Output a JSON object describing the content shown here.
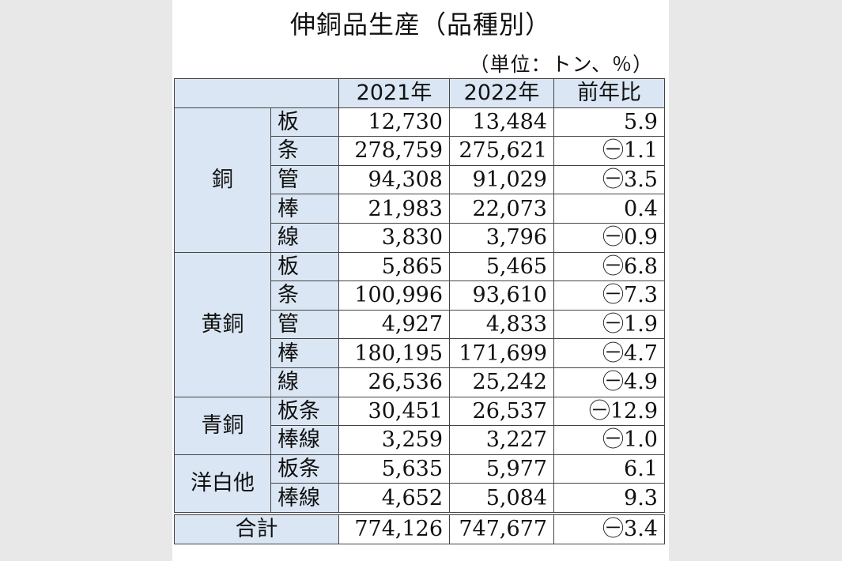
{
  "title": "伸銅品生産（品種別）",
  "unit": "（単位：トン、％）",
  "header": {
    "blank": "",
    "col2021": "2021年",
    "col2022": "2022年",
    "ratio": "前年比"
  },
  "groups": [
    {
      "name": "銅",
      "rows": [
        {
          "item": "板",
          "y2021": "12,730",
          "y2022": "13,484",
          "ratio": "5.9"
        },
        {
          "item": "条",
          "y2021": "278,759",
          "y2022": "275,621",
          "ratio": "㊀1.1"
        },
        {
          "item": "管",
          "y2021": "94,308",
          "y2022": "91,029",
          "ratio": "㊀3.5"
        },
        {
          "item": "棒",
          "y2021": "21,983",
          "y2022": "22,073",
          "ratio": "0.4"
        },
        {
          "item": "線",
          "y2021": "3,830",
          "y2022": "3,796",
          "ratio": "㊀0.9"
        }
      ]
    },
    {
      "name": "黄銅",
      "rows": [
        {
          "item": "板",
          "y2021": "5,865",
          "y2022": "5,465",
          "ratio": "㊀6.8"
        },
        {
          "item": "条",
          "y2021": "100,996",
          "y2022": "93,610",
          "ratio": "㊀7.3"
        },
        {
          "item": "管",
          "y2021": "4,927",
          "y2022": "4,833",
          "ratio": "㊀1.9"
        },
        {
          "item": "棒",
          "y2021": "180,195",
          "y2022": "171,699",
          "ratio": "㊀4.7"
        },
        {
          "item": "線",
          "y2021": "26,536",
          "y2022": "25,242",
          "ratio": "㊀4.9"
        }
      ]
    },
    {
      "name": "青銅",
      "rows": [
        {
          "item": "板条",
          "y2021": "30,451",
          "y2022": "26,537",
          "ratio": "㊀12.9"
        },
        {
          "item": "棒線",
          "y2021": "3,259",
          "y2022": "3,227",
          "ratio": "㊀1.0"
        }
      ]
    },
    {
      "name": "洋白他",
      "rows": [
        {
          "item": "板条",
          "y2021": "5,635",
          "y2022": "5,977",
          "ratio": "6.1"
        },
        {
          "item": "棒線",
          "y2021": "4,652",
          "y2022": "5,084",
          "ratio": "9.3"
        }
      ]
    }
  ],
  "total": {
    "label": "合計",
    "y2021": "774,126",
    "y2022": "747,677",
    "ratio": "㊀3.4"
  },
  "colors": {
    "header_bg": "#dbe6f4",
    "border": "#444444",
    "page_bg": "#ffffff",
    "outer_bg": "#e8e8e8"
  }
}
